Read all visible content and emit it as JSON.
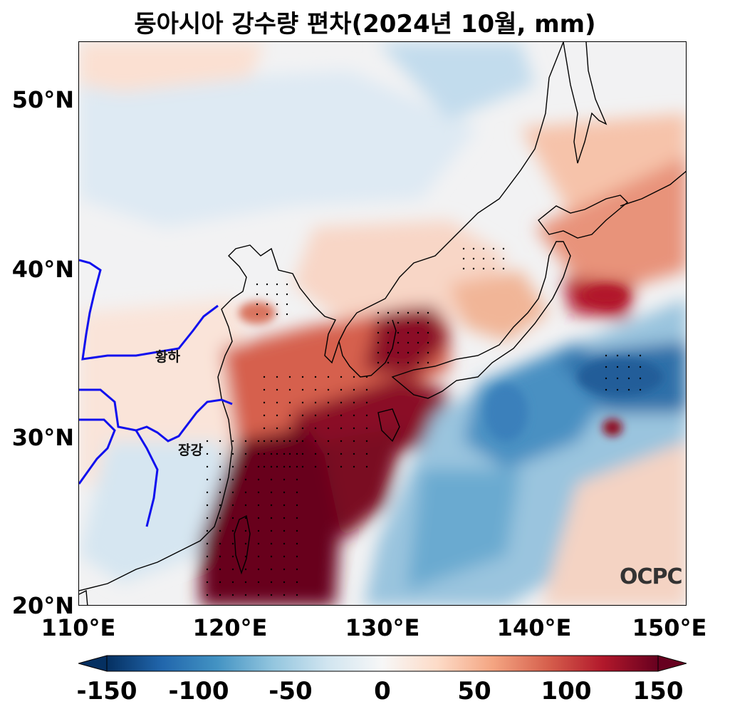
{
  "title": "동아시아 강수량 편차(2024년 10월, mm)",
  "axes": {
    "y_ticks": [
      "50°N",
      "40°N",
      "30°N",
      "20°N"
    ],
    "x_ticks": [
      "110°E",
      "120°E",
      "130°E",
      "140°E",
      "150°E"
    ],
    "lon_range": [
      110,
      150
    ],
    "lat_range": [
      20,
      53.5
    ]
  },
  "rivers": {
    "yellow_river_label": "황하",
    "yangtze_label": "장강",
    "color": "#1010ee"
  },
  "logo": "OCPC",
  "colorbar": {
    "ticks": [
      "-150",
      "-100",
      "-50",
      "0",
      "50",
      "100",
      "150"
    ],
    "range": [
      -150,
      150
    ],
    "colormap": "RdBu_r",
    "low_color": "#053061",
    "mid_color": "#f7f7f7",
    "high_color": "#67001f"
  }
}
